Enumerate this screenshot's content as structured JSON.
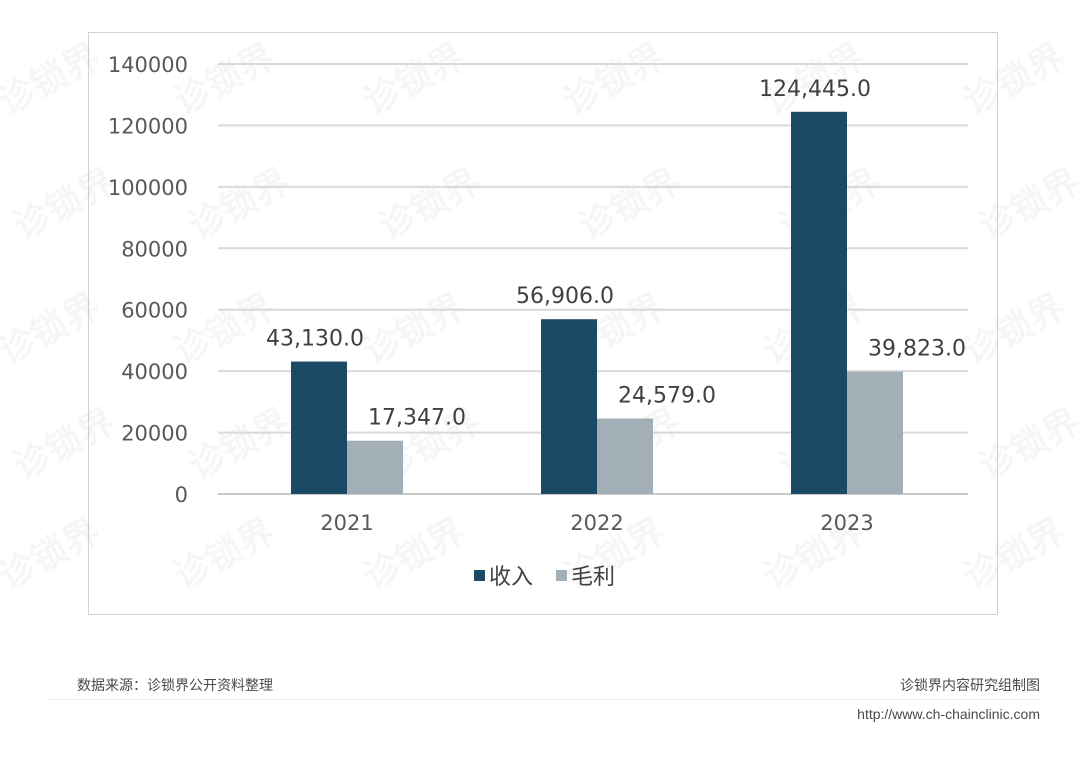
{
  "chart_data": {
    "type": "bar",
    "categories": [
      "2021",
      "2022",
      "2023"
    ],
    "series": [
      {
        "name": "收入",
        "values": [
          43130.0,
          56906.0,
          124445.0
        ],
        "labels": [
          "43,130.0",
          "56,906.0",
          "124,445.0"
        ],
        "color": "#1b4a66"
      },
      {
        "name": "毛利",
        "values": [
          17347.0,
          24579.0,
          39823.0
        ],
        "labels": [
          "17,347.0",
          "24,579.0",
          "39,823.0"
        ],
        "color": "#a3afb7"
      }
    ],
    "yticks": [
      "0",
      "20000",
      "40000",
      "60000",
      "80000",
      "100000",
      "120000",
      "140000"
    ],
    "ylim": [
      0,
      140000
    ],
    "grid": true,
    "legend_position": "bottom-center"
  },
  "watermark": "诊锁界",
  "footer": {
    "source": "数据来源：诊锁界公开资料整理",
    "credit": "诊锁界内容研究组制图",
    "url": "http://www.ch-chainclinic.com"
  }
}
